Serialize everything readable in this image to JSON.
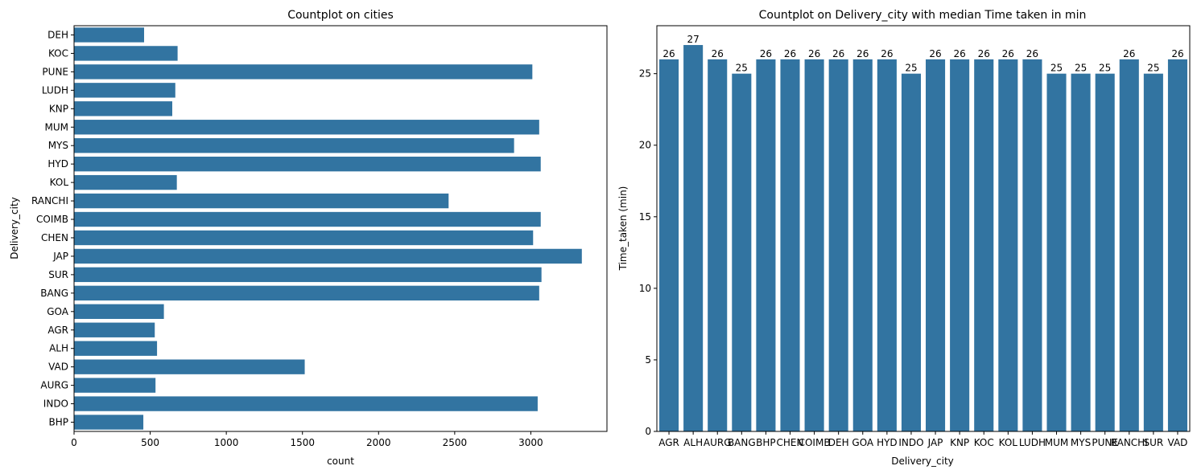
{
  "colors": {
    "bar": "#3274a1",
    "axis": "#000000",
    "background": "#ffffff"
  },
  "chart_data": [
    {
      "type": "bar",
      "orientation": "horizontal",
      "title": "Countplot on cities",
      "xlabel": "count",
      "ylabel": "Delivery_city",
      "xlim": [
        0,
        3500
      ],
      "xticks": [
        0,
        500,
        1000,
        1500,
        2000,
        2500,
        3000
      ],
      "grid": false,
      "categories": [
        "DEH",
        "KOC",
        "PUNE",
        "LUDH",
        "KNP",
        "MUM",
        "MYS",
        "HYD",
        "KOL",
        "RANCHI",
        "COIMB",
        "CHEN",
        "JAP",
        "SUR",
        "BANG",
        "GOA",
        "AGR",
        "ALH",
        "VAD",
        "AURG",
        "INDO",
        "BHP"
      ],
      "values": [
        460,
        680,
        3010,
        665,
        645,
        3055,
        2890,
        3065,
        675,
        2460,
        3065,
        3015,
        3335,
        3070,
        3055,
        590,
        530,
        545,
        1515,
        535,
        3045,
        455
      ]
    },
    {
      "type": "bar",
      "orientation": "vertical",
      "title": "Countplot on Delivery_city with median Time taken in min",
      "xlabel": "Delivery_city",
      "ylabel": "Time_taken (min)",
      "ylim": [
        0,
        28.35
      ],
      "yticks": [
        0,
        5,
        10,
        15,
        20,
        25
      ],
      "grid": false,
      "categories": [
        "AGR",
        "ALH",
        "AURG",
        "BANG",
        "BHP",
        "CHEN",
        "COIMB",
        "DEH",
        "GOA",
        "HYD",
        "INDO",
        "JAP",
        "KNP",
        "KOC",
        "KOL",
        "LUDH",
        "MUM",
        "MYS",
        "PUNE",
        "RANCHI",
        "SUR",
        "VAD"
      ],
      "values": [
        26,
        27,
        26,
        25,
        26,
        26,
        26,
        26,
        26,
        26,
        25,
        26,
        26,
        26,
        26,
        26,
        25,
        25,
        25,
        26,
        25,
        26
      ],
      "data_labels": [
        "26",
        "27",
        "26",
        "25",
        "26",
        "26",
        "26",
        "26",
        "26",
        "26",
        "25",
        "26",
        "26",
        "26",
        "26",
        "26",
        "25",
        "25",
        "25",
        "26",
        "25",
        "26"
      ]
    }
  ]
}
